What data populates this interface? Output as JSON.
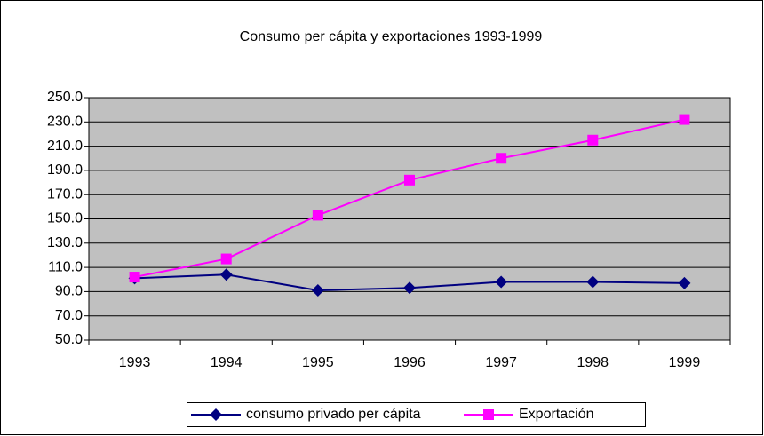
{
  "chart_data": {
    "type": "line",
    "title": "Consumo per cápita y exportaciones 1993-1999",
    "categories": [
      "1993",
      "1994",
      "1995",
      "1996",
      "1997",
      "1998",
      "1999"
    ],
    "series": [
      {
        "name": "consumo privado per cápita",
        "color": "#000080",
        "marker": "diamond",
        "values": [
          101,
          104,
          91,
          93,
          98,
          98,
          97
        ]
      },
      {
        "name": "Exportación",
        "color": "#ff00ff",
        "marker": "square",
        "values": [
          102,
          117,
          153,
          182,
          200,
          215,
          232
        ]
      }
    ],
    "ylim": [
      50,
      250
    ],
    "yticks": [
      {
        "value": 50,
        "label": "50.0"
      },
      {
        "value": 70,
        "label": "70.0"
      },
      {
        "value": 90,
        "label": "90.0"
      },
      {
        "value": 110,
        "label": "110.0"
      },
      {
        "value": 130,
        "label": "130.0"
      },
      {
        "value": 150,
        "label": "150.0"
      },
      {
        "value": 170,
        "label": "170.0"
      },
      {
        "value": 190,
        "label": "190.0"
      },
      {
        "value": 210,
        "label": "210.0"
      },
      {
        "value": 230,
        "label": "230.0"
      },
      {
        "value": 250,
        "label": "250.0"
      }
    ],
    "grid": true,
    "legend": "bottom"
  }
}
